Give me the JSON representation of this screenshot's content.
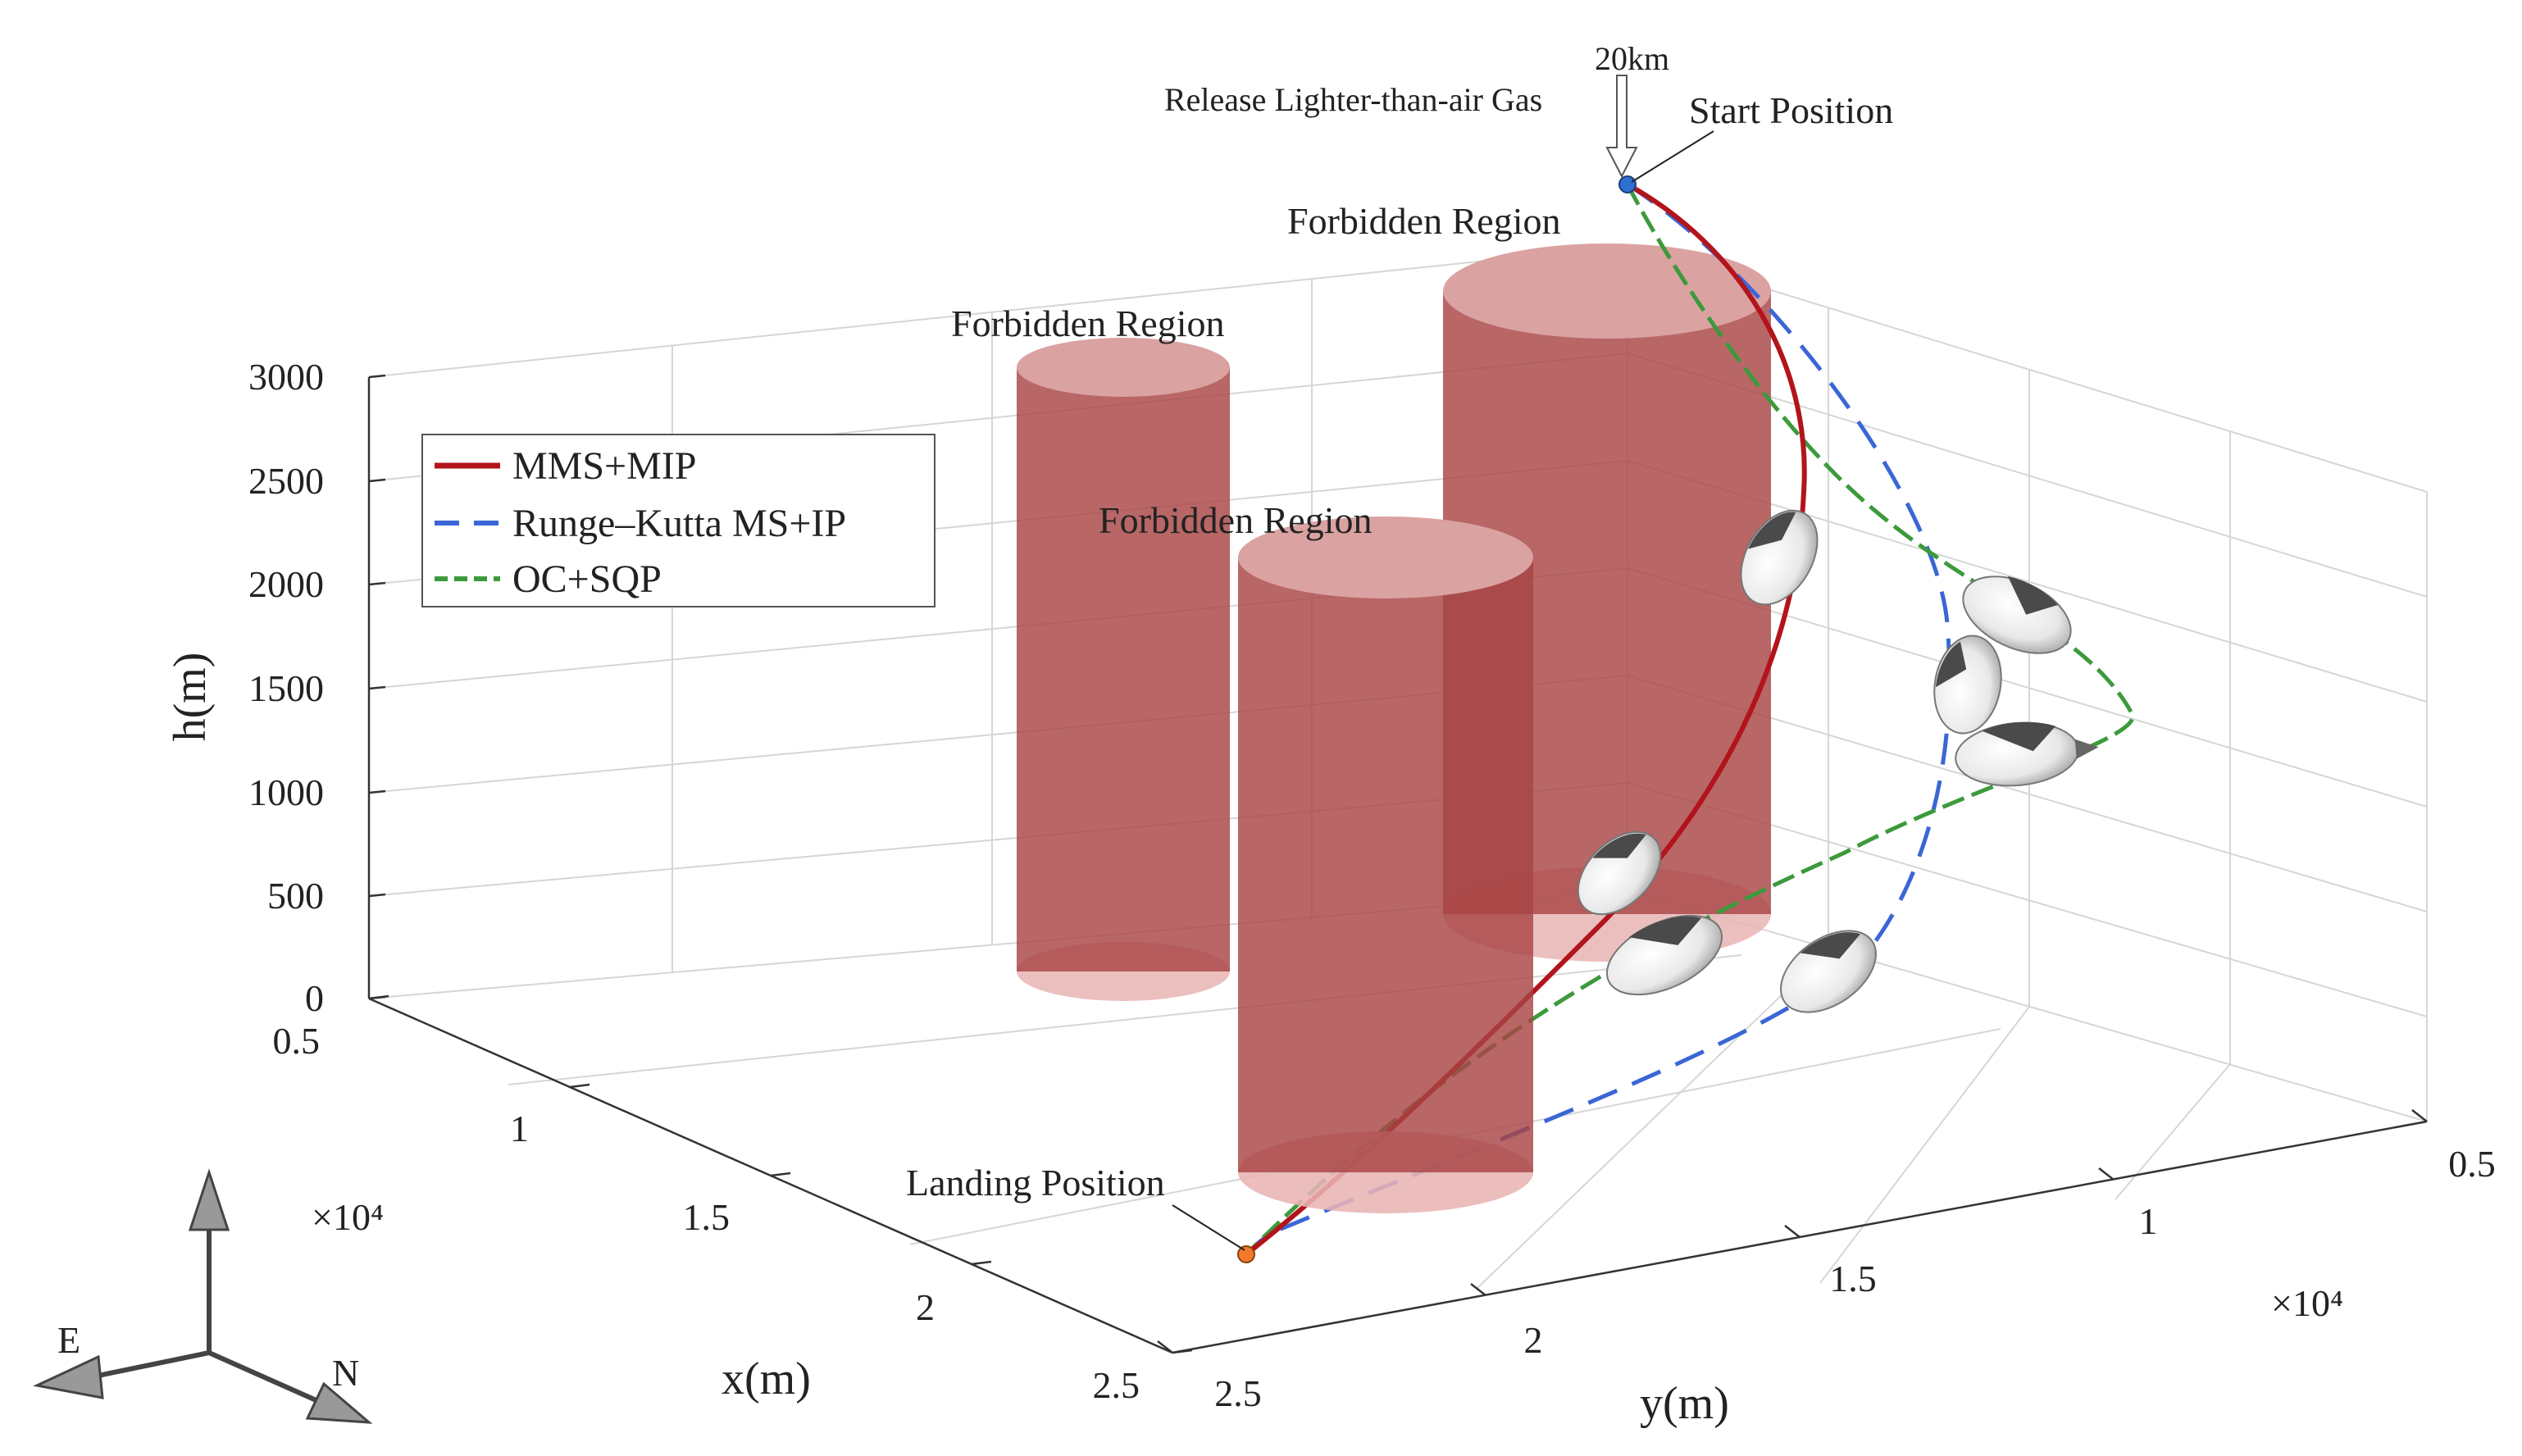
{
  "chart_data": {
    "type": "3d-line",
    "title": "",
    "xlabel": "x(m)",
    "ylabel": "y(m)",
    "zlabel": "h(m)",
    "x_ticks": [
      "0.5",
      "1",
      "1.5",
      "2",
      "2.5"
    ],
    "y_ticks": [
      "0.5",
      "1",
      "1.5",
      "2",
      "2.5"
    ],
    "z_ticks": [
      "0",
      "500",
      "1000",
      "1500",
      "2000",
      "2500",
      "3000"
    ],
    "x_multiplier": "×10⁴",
    "y_multiplier": "×10⁴",
    "xlim": [
      5000,
      25000
    ],
    "ylim": [
      5000,
      25000
    ],
    "zlim": [
      0,
      3000
    ],
    "grid": true,
    "legend_position": "top-left",
    "series": [
      {
        "name": "MMS+MIP",
        "color": "#b3141b",
        "style": "solid"
      },
      {
        "name": "Runge–Kutta MS+IP",
        "color": "#3a66d6",
        "style": "dashed"
      },
      {
        "name": "OC+SQP",
        "color": "#3c9a3c",
        "style": "dashed"
      }
    ],
    "obstacles": [
      {
        "label": "Forbidden Region",
        "color": "#a33535"
      },
      {
        "label": "Forbidden Region",
        "color": "#a33535"
      },
      {
        "label": "Forbidden Region",
        "color": "#a33535"
      }
    ],
    "annotations": {
      "altitude": "20km",
      "release": "Release Lighter-than-air Gas",
      "start": "Start Position",
      "landing": "Landing Position"
    },
    "compass": {
      "east": "E",
      "north": "N"
    }
  }
}
